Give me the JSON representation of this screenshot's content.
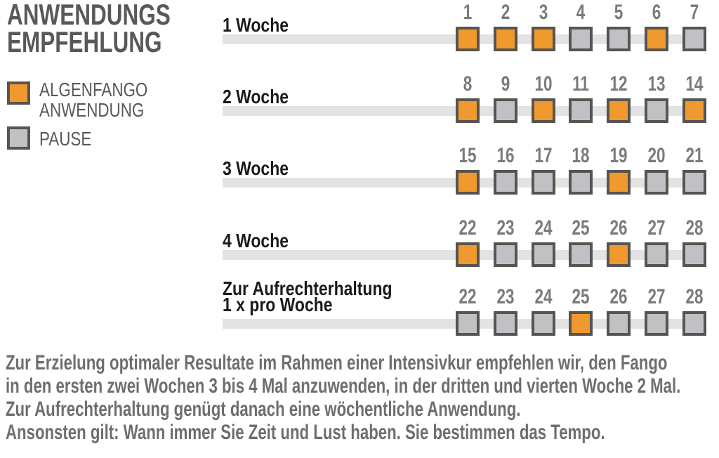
{
  "title": {
    "line1": "ANWENDUNGS",
    "line2": "EMPFEHLUNG"
  },
  "legend": {
    "items": [
      {
        "key": "anwendung",
        "lines": [
          "ALGENFANGO",
          "ANWENDUNG"
        ]
      },
      {
        "key": "pause",
        "lines": [
          "PAUSE"
        ]
      }
    ]
  },
  "colors": {
    "anwendung": "#F0992F",
    "pause": "#C1C1C5",
    "square_border": "#58544E",
    "track": "#E3E3E5",
    "title_text": "#58595B",
    "number_text": "#7A7B7E",
    "label_text": "#1A1A1A",
    "footer_text": "#6D6E70"
  },
  "rows": [
    {
      "label_lines": [
        "1 Woche"
      ],
      "days": [
        {
          "num": "1",
          "type": "anwendung"
        },
        {
          "num": "2",
          "type": "anwendung"
        },
        {
          "num": "3",
          "type": "anwendung"
        },
        {
          "num": "4",
          "type": "pause"
        },
        {
          "num": "5",
          "type": "pause"
        },
        {
          "num": "6",
          "type": "anwendung"
        },
        {
          "num": "7",
          "type": "pause"
        }
      ]
    },
    {
      "label_lines": [
        "2 Woche"
      ],
      "days": [
        {
          "num": "8",
          "type": "anwendung"
        },
        {
          "num": "9",
          "type": "pause"
        },
        {
          "num": "10",
          "type": "anwendung"
        },
        {
          "num": "11",
          "type": "pause"
        },
        {
          "num": "12",
          "type": "anwendung"
        },
        {
          "num": "13",
          "type": "pause"
        },
        {
          "num": "14",
          "type": "anwendung"
        }
      ]
    },
    {
      "label_lines": [
        "3 Woche"
      ],
      "days": [
        {
          "num": "15",
          "type": "anwendung"
        },
        {
          "num": "16",
          "type": "pause"
        },
        {
          "num": "17",
          "type": "pause"
        },
        {
          "num": "18",
          "type": "pause"
        },
        {
          "num": "19",
          "type": "anwendung"
        },
        {
          "num": "20",
          "type": "pause"
        },
        {
          "num": "21",
          "type": "pause"
        }
      ]
    },
    {
      "label_lines": [
        "4 Woche"
      ],
      "days": [
        {
          "num": "22",
          "type": "anwendung"
        },
        {
          "num": "23",
          "type": "pause"
        },
        {
          "num": "24",
          "type": "pause"
        },
        {
          "num": "25",
          "type": "pause"
        },
        {
          "num": "26",
          "type": "anwendung"
        },
        {
          "num": "27",
          "type": "pause"
        },
        {
          "num": "28",
          "type": "pause"
        }
      ]
    },
    {
      "label_lines": [
        "Zur Aufrechterhaltung",
        "1 x pro Woche"
      ],
      "days": [
        {
          "num": "22",
          "type": "pause"
        },
        {
          "num": "23",
          "type": "pause"
        },
        {
          "num": "24",
          "type": "pause"
        },
        {
          "num": "25",
          "type": "anwendung"
        },
        {
          "num": "26",
          "type": "pause"
        },
        {
          "num": "27",
          "type": "pause"
        },
        {
          "num": "28",
          "type": "pause"
        }
      ]
    }
  ],
  "footer": {
    "lines": [
      "Zur Erzielung optimaler Resultate im Rahmen einer Intensivkur empfehlen wir, den Fango",
      "in den ersten zwei Wochen 3 bis 4 Mal anzuwenden, in der dritten und vierten Woche 2 Mal.",
      "Zur Aufrechterhaltung genügt danach eine wöchentliche Anwendung.",
      "Ansonsten gilt: Wann immer Sie Zeit und Lust haben. Sie bestimmen das Tempo."
    ]
  }
}
